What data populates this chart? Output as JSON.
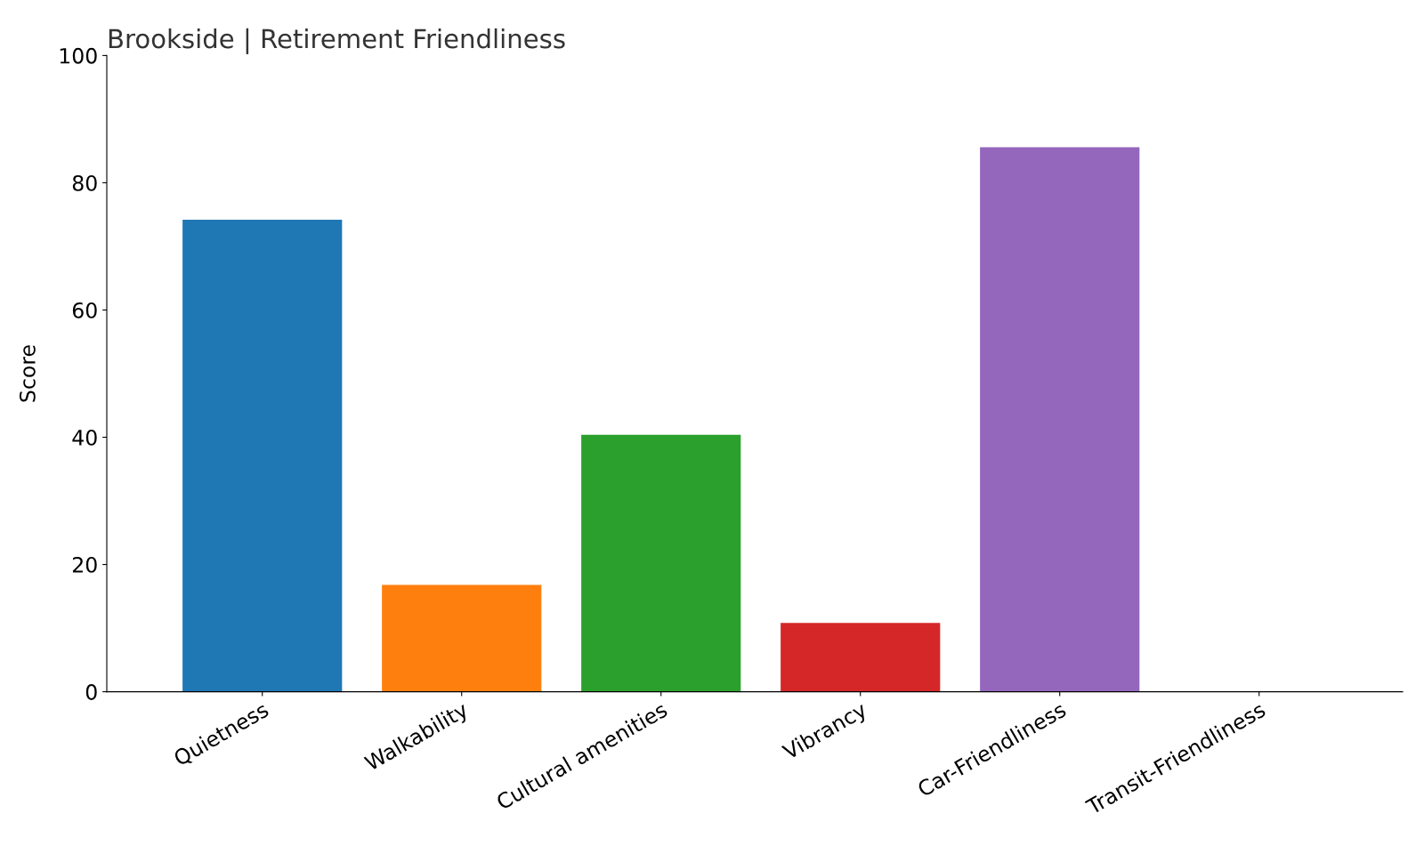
{
  "chart_data": {
    "type": "bar",
    "title": "Brookside | Retirement Friendliness",
    "ylabel": "Score",
    "categories": [
      "Quietness",
      "Walkability",
      "Cultural amenities",
      "Vibrancy",
      "Car-Friendliness",
      "Transit-Friendliness"
    ],
    "values": [
      74.2,
      16.8,
      40.4,
      10.8,
      85.6,
      0
    ],
    "colors": [
      "#1f77b4",
      "#ff7f0e",
      "#2ca02c",
      "#d62728",
      "#9467bd",
      "#8c564b"
    ],
    "ylim": [
      0,
      100
    ],
    "yticks": [
      0,
      20,
      40,
      60,
      80,
      100
    ],
    "grid": false,
    "legend": false
  }
}
